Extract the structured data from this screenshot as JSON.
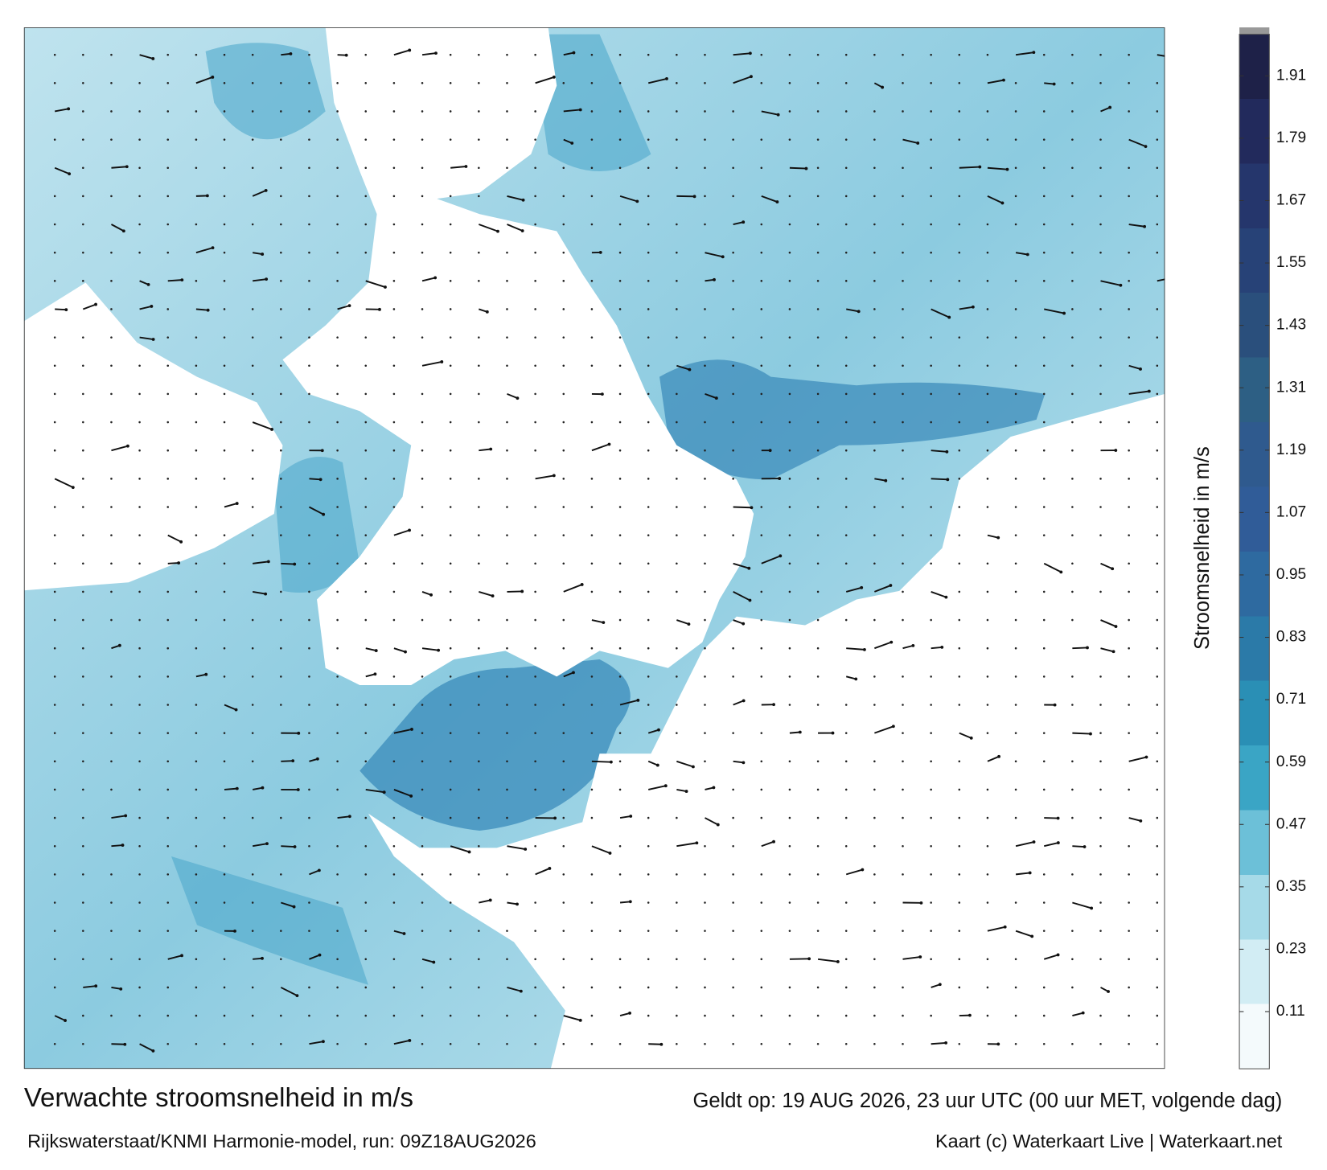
{
  "title": "Verwachte stroomsnelheid in m/s",
  "valid_time": "Geldt op: 19 AUG 2026, 23 uur UTC (00 uur MET, volgende dag)",
  "model_run": "Rijkswaterstaat/KNMI Harmonie-model, run: 09Z18AUG2026",
  "credit": "Kaart (c) Waterkaart Live | Waterkaart.net",
  "colorbar": {
    "label": "Stroomsnelheid in m/s",
    "lim": [
      0,
      1.99
    ],
    "ticks": [
      0.11,
      0.23,
      0.35,
      0.47,
      0.59,
      0.71,
      0.83,
      0.95,
      1.07,
      1.19,
      1.31,
      1.43,
      1.55,
      1.67,
      1.79,
      1.91
    ],
    "colors": [
      "#f4fafc",
      "#d2edf4",
      "#a6dae8",
      "#6cc0d8",
      "#3aa5c5",
      "#2a8fb5",
      "#2b7aa8",
      "#2e6aa0",
      "#305c98",
      "#2f5a8e",
      "#2d5f84",
      "#2a4f7c",
      "#274277",
      "#25366c",
      "#222a5c",
      "#1e2148"
    ]
  }
}
